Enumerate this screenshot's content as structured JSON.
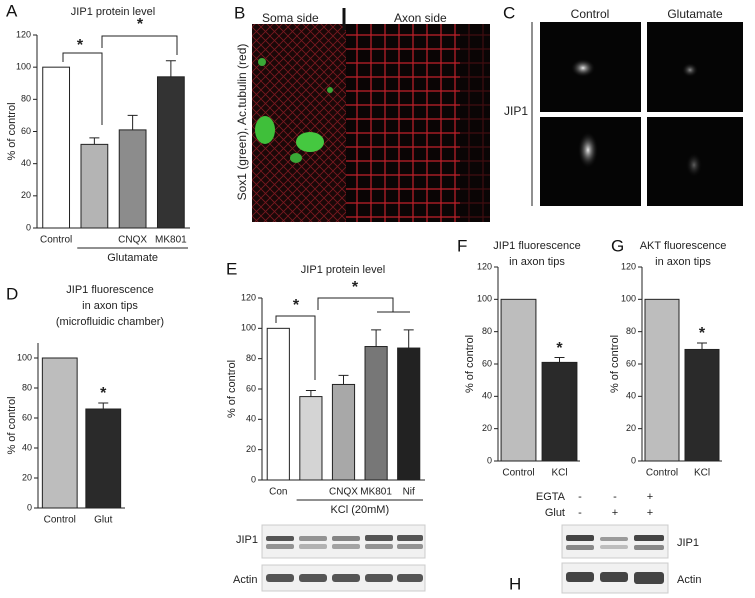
{
  "chart_data": [
    {
      "type": "bar",
      "title": "JIP1 protein level",
      "ylabel": "% of control",
      "categories": [
        "Control",
        null,
        "CNQX",
        "MK801"
      ],
      "values": [
        100,
        52,
        61,
        94
      ],
      "errors": [
        0,
        4,
        9,
        10
      ],
      "colors": [
        "#ffffff",
        "#b4b4b4",
        "#8c8c8c",
        "#333333"
      ],
      "ylim": [
        0,
        120
      ],
      "yticks": [
        0,
        20,
        40,
        60,
        80,
        100,
        120
      ],
      "group_label": "Glutamate",
      "annotations": [
        "*",
        "*"
      ]
    },
    {
      "type": "bar",
      "title": [
        "JIP1 fluorescence",
        "in axon tips",
        "(microfluidic chamber)"
      ],
      "ylabel": "% of control",
      "categories": [
        "Control",
        "Glut"
      ],
      "values": [
        100,
        66
      ],
      "errors": [
        0,
        4
      ],
      "colors": [
        "#bdbdbd",
        "#2a2a2a"
      ],
      "ylim": [
        0,
        110
      ],
      "yticks": [
        0,
        20,
        40,
        60,
        80,
        100
      ],
      "annotations": [
        "*"
      ]
    },
    {
      "type": "bar",
      "title": "JIP1 protein level",
      "ylabel": "% of control",
      "categories": [
        "Con",
        null,
        "CNQX",
        "MK801",
        "Nif"
      ],
      "values": [
        100,
        55,
        63,
        88,
        87
      ],
      "errors": [
        0,
        4,
        6,
        11,
        12
      ],
      "colors": [
        "#ffffff",
        "#d4d4d4",
        "#a8a8a8",
        "#777777",
        "#222222"
      ],
      "ylim": [
        0,
        120
      ],
      "yticks": [
        0,
        20,
        40,
        60,
        80,
        100,
        120
      ],
      "group_label": "KCl (20mM)",
      "annotations": [
        "*",
        "*"
      ]
    },
    {
      "type": "bar",
      "title": [
        "JIP1 fluorescence",
        "in axon tips"
      ],
      "ylabel": "% of control",
      "categories": [
        "Control",
        "KCl"
      ],
      "values": [
        100,
        61
      ],
      "errors": [
        0,
        3
      ],
      "colors": [
        "#bdbdbd",
        "#2a2a2a"
      ],
      "ylim": [
        0,
        120
      ],
      "yticks": [
        0,
        20,
        40,
        60,
        80,
        100,
        120
      ],
      "annotations": [
        "*"
      ]
    },
    {
      "type": "bar",
      "title": [
        "AKT fluorescence",
        "in axon tips"
      ],
      "ylabel": "% of control",
      "categories": [
        "Control",
        "KCl"
      ],
      "values": [
        100,
        69
      ],
      "errors": [
        0,
        4
      ],
      "colors": [
        "#bdbdbd",
        "#2a2a2a"
      ],
      "ylim": [
        0,
        120
      ],
      "yticks": [
        0,
        20,
        40,
        60,
        80,
        100,
        120
      ],
      "annotations": [
        "*"
      ]
    }
  ],
  "panels": {
    "letters": [
      "A",
      "B",
      "C",
      "D",
      "E",
      "F",
      "G",
      "H"
    ],
    "B": {
      "left": "Soma side",
      "right": "Axon side",
      "ylabel": "Sox1 (green), Ac.tubulin (red)"
    },
    "C": {
      "columns": [
        "Control",
        "Glutamate"
      ],
      "row_label": "JIP1"
    },
    "E_blot": {
      "rows": [
        "JIP1",
        "Actin"
      ]
    },
    "H": {
      "conditions": [
        {
          "name": "EGTA",
          "signs": [
            "-",
            "-",
            "+"
          ]
        },
        {
          "name": "Glut",
          "signs": [
            "-",
            "+",
            "+"
          ]
        }
      ],
      "rows": [
        "JIP1",
        "Actin"
      ]
    }
  }
}
